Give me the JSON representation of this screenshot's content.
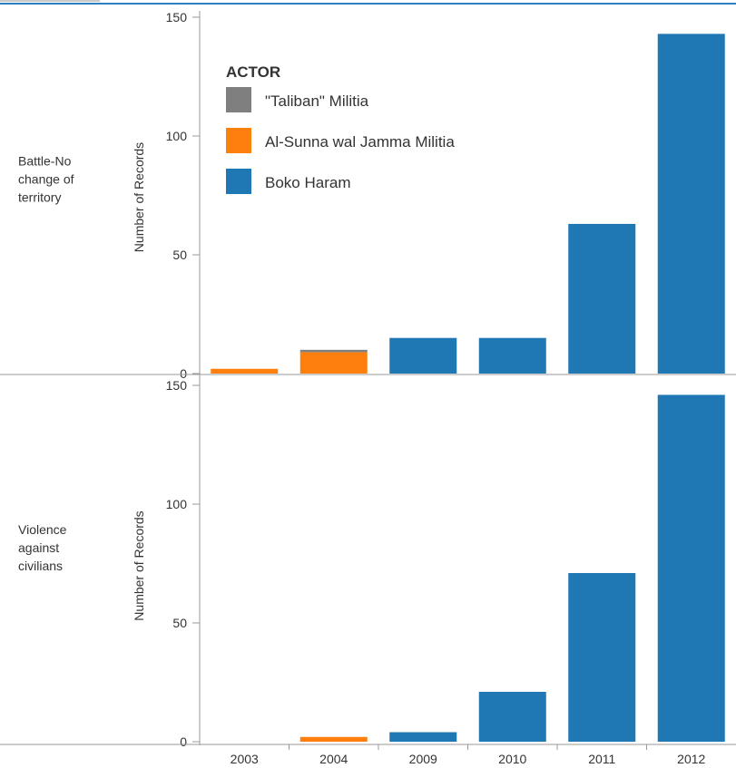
{
  "chart_data": {
    "type": "bar",
    "stacked": true,
    "categories": [
      "2003",
      "2004",
      "2009",
      "2010",
      "2011",
      "2012"
    ],
    "legend": {
      "title": "ACTOR",
      "placement": "top-left",
      "entries": [
        {
          "name": "\"Taliban\" Militia",
          "color": "#7f7f7f"
        },
        {
          "name": "Al-Sunna wal Jamma Militia",
          "color": "#ff7f0e"
        },
        {
          "name": "Boko Haram",
          "color": "#1f77b4"
        }
      ]
    },
    "y_ticks": [
      0,
      50,
      100,
      150
    ],
    "ylim": [
      0,
      150
    ],
    "panels": [
      {
        "row_label": "Battle-No change of territory",
        "ylabel": "Number of Records",
        "series": [
          {
            "name": "Al-Sunna wal Jamma Militia",
            "values": [
              2,
              9,
              0,
              0,
              0,
              0
            ]
          },
          {
            "name": "\"Taliban\" Militia",
            "values": [
              0,
              1,
              0,
              0,
              0,
              0
            ]
          },
          {
            "name": "Boko Haram",
            "values": [
              0,
              0,
              15,
              15,
              63,
              143
            ]
          }
        ]
      },
      {
        "row_label": "Violence against civilians",
        "ylabel": "Number of Records",
        "series": [
          {
            "name": "Al-Sunna wal Jamma Militia",
            "values": [
              0,
              2,
              0,
              0,
              0,
              0
            ]
          },
          {
            "name": "\"Taliban\" Militia",
            "values": [
              0,
              0,
              0,
              0,
              0,
              0
            ]
          },
          {
            "name": "Boko Haram",
            "values": [
              0,
              0,
              4,
              21,
              71,
              146
            ]
          }
        ]
      }
    ]
  }
}
